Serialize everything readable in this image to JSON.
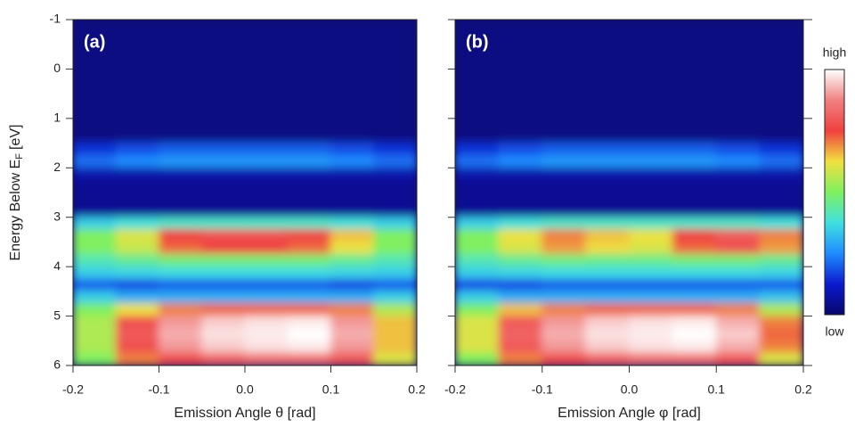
{
  "chart_data": [
    {
      "type": "heatmap",
      "title": "(a)",
      "x_label": "Emission Angle θ [rad]",
      "y_label": {
        "main": "Energy Below E",
        "sub": "F",
        "unit": "[eV]"
      },
      "xlim": [
        -0.2,
        0.2
      ],
      "xticks": [
        -0.2,
        -0.1,
        {
          "value": 0,
          "label": "0.0"
        },
        0.1,
        0.2
      ],
      "ylim": [
        6,
        -1
      ],
      "yticks": [
        -1,
        0,
        1,
        2,
        3,
        4,
        5,
        6
      ],
      "xbins": [
        -0.2,
        -0.15,
        -0.1,
        -0.05,
        0,
        0.05,
        0.1,
        0.15,
        0.2
      ],
      "ybins": [
        -1,
        -0.75,
        -0.5,
        -0.25,
        0,
        0.25,
        0.5,
        0.75,
        1,
        1.25,
        1.5,
        1.75,
        2,
        2.25,
        2.5,
        2.75,
        3,
        3.25,
        3.5,
        3.75,
        4,
        4.25,
        4.5,
        4.75,
        5,
        5.25,
        5.5,
        5.75,
        6
      ],
      "colormap": [
        "#06066a",
        "#0c1ad0",
        "#1e8cff",
        "#40e0e0",
        "#80f060",
        "#f0e040",
        "#f04040",
        "#f08080",
        "#ffffff"
      ],
      "z": [
        [
          0.03,
          0.03,
          0.03,
          0.03,
          0.03,
          0.03,
          0.03,
          0.03
        ],
        [
          0.03,
          0.03,
          0.03,
          0.03,
          0.03,
          0.03,
          0.03,
          0.03
        ],
        [
          0.03,
          0.03,
          0.03,
          0.03,
          0.03,
          0.03,
          0.03,
          0.03
        ],
        [
          0.03,
          0.03,
          0.03,
          0.03,
          0.03,
          0.03,
          0.03,
          0.03
        ],
        [
          0.03,
          0.03,
          0.03,
          0.03,
          0.03,
          0.03,
          0.03,
          0.03
        ],
        [
          0.03,
          0.03,
          0.03,
          0.03,
          0.03,
          0.03,
          0.03,
          0.03
        ],
        [
          0.03,
          0.03,
          0.03,
          0.03,
          0.03,
          0.03,
          0.03,
          0.03
        ],
        [
          0.03,
          0.03,
          0.03,
          0.03,
          0.03,
          0.03,
          0.03,
          0.03
        ],
        [
          0.03,
          0.03,
          0.03,
          0.03,
          0.03,
          0.03,
          0.03,
          0.03
        ],
        [
          0.03,
          0.03,
          0.03,
          0.03,
          0.03,
          0.03,
          0.03,
          0.03
        ],
        [
          0.15,
          0.18,
          0.2,
          0.2,
          0.2,
          0.2,
          0.18,
          0.15
        ],
        [
          0.22,
          0.25,
          0.27,
          0.27,
          0.27,
          0.27,
          0.25,
          0.22
        ],
        [
          0.08,
          0.08,
          0.08,
          0.08,
          0.08,
          0.08,
          0.08,
          0.08
        ],
        [
          0.05,
          0.05,
          0.05,
          0.05,
          0.05,
          0.05,
          0.05,
          0.05
        ],
        [
          0.05,
          0.05,
          0.05,
          0.05,
          0.05,
          0.05,
          0.05,
          0.05
        ],
        [
          0.05,
          0.05,
          0.05,
          0.05,
          0.05,
          0.05,
          0.05,
          0.05
        ],
        [
          0.35,
          0.38,
          0.4,
          0.4,
          0.4,
          0.4,
          0.38,
          0.35
        ],
        [
          0.5,
          0.6,
          0.75,
          0.78,
          0.78,
          0.76,
          0.65,
          0.5
        ],
        [
          0.5,
          0.58,
          0.72,
          0.75,
          0.75,
          0.72,
          0.62,
          0.5
        ],
        [
          0.42,
          0.45,
          0.48,
          0.48,
          0.48,
          0.48,
          0.45,
          0.42
        ],
        [
          0.35,
          0.36,
          0.37,
          0.37,
          0.37,
          0.37,
          0.36,
          0.35
        ],
        [
          0.2,
          0.18,
          0.2,
          0.2,
          0.2,
          0.2,
          0.18,
          0.2
        ],
        [
          0.35,
          0.3,
          0.3,
          0.3,
          0.3,
          0.3,
          0.3,
          0.35
        ],
        [
          0.5,
          0.62,
          0.7,
          0.72,
          0.72,
          0.72,
          0.7,
          0.55
        ],
        [
          0.55,
          0.78,
          0.9,
          0.95,
          0.97,
          0.98,
          0.9,
          0.65
        ],
        [
          0.55,
          0.8,
          0.92,
          0.97,
          0.98,
          1.0,
          0.92,
          0.65
        ],
        [
          0.55,
          0.78,
          0.9,
          0.95,
          0.97,
          0.98,
          0.9,
          0.65
        ],
        [
          0.5,
          0.7,
          0.78,
          0.82,
          0.85,
          0.85,
          0.8,
          0.6
        ]
      ]
    },
    {
      "type": "heatmap",
      "title": "(b)",
      "x_label": "Emission Angle φ [rad]",
      "xlim": [
        -0.2,
        0.2
      ],
      "xticks": [
        -0.2,
        -0.1,
        {
          "value": 0,
          "label": "0.0"
        },
        0.1,
        0.2
      ],
      "ylim": [
        6,
        -1
      ],
      "yticks": [
        -1,
        0,
        1,
        2,
        3,
        4,
        5,
        6
      ],
      "xbins": [
        -0.2,
        -0.15,
        -0.1,
        -0.05,
        0,
        0.05,
        0.1,
        0.15,
        0.2
      ],
      "ybins": [
        -1,
        -0.75,
        -0.5,
        -0.25,
        0,
        0.25,
        0.5,
        0.75,
        1,
        1.25,
        1.5,
        1.75,
        2,
        2.25,
        2.5,
        2.75,
        3,
        3.25,
        3.5,
        3.75,
        4,
        4.25,
        4.5,
        4.75,
        5,
        5.25,
        5.5,
        5.75,
        6
      ],
      "colormap": [
        "#06066a",
        "#0c1ad0",
        "#1e8cff",
        "#40e0e0",
        "#80f060",
        "#f0e040",
        "#f04040",
        "#f08080",
        "#ffffff"
      ],
      "colorbar": {
        "high": "high",
        "low": "low"
      },
      "z": [
        [
          0.03,
          0.03,
          0.03,
          0.03,
          0.03,
          0.03,
          0.03,
          0.03
        ],
        [
          0.03,
          0.03,
          0.03,
          0.03,
          0.03,
          0.03,
          0.03,
          0.03
        ],
        [
          0.03,
          0.03,
          0.03,
          0.03,
          0.03,
          0.03,
          0.03,
          0.03
        ],
        [
          0.03,
          0.03,
          0.03,
          0.03,
          0.03,
          0.03,
          0.03,
          0.03
        ],
        [
          0.03,
          0.03,
          0.03,
          0.03,
          0.03,
          0.03,
          0.03,
          0.03
        ],
        [
          0.03,
          0.03,
          0.03,
          0.03,
          0.03,
          0.03,
          0.03,
          0.03
        ],
        [
          0.03,
          0.03,
          0.03,
          0.03,
          0.03,
          0.03,
          0.03,
          0.03
        ],
        [
          0.03,
          0.03,
          0.03,
          0.03,
          0.03,
          0.03,
          0.03,
          0.03
        ],
        [
          0.03,
          0.03,
          0.03,
          0.03,
          0.03,
          0.03,
          0.03,
          0.03
        ],
        [
          0.03,
          0.03,
          0.03,
          0.03,
          0.03,
          0.03,
          0.03,
          0.03
        ],
        [
          0.15,
          0.18,
          0.2,
          0.2,
          0.2,
          0.2,
          0.18,
          0.15
        ],
        [
          0.22,
          0.25,
          0.27,
          0.27,
          0.27,
          0.27,
          0.25,
          0.22
        ],
        [
          0.08,
          0.08,
          0.08,
          0.08,
          0.08,
          0.08,
          0.08,
          0.08
        ],
        [
          0.05,
          0.05,
          0.05,
          0.05,
          0.05,
          0.05,
          0.05,
          0.05
        ],
        [
          0.05,
          0.05,
          0.05,
          0.05,
          0.05,
          0.05,
          0.05,
          0.05
        ],
        [
          0.05,
          0.05,
          0.05,
          0.05,
          0.05,
          0.05,
          0.05,
          0.05
        ],
        [
          0.35,
          0.38,
          0.4,
          0.4,
          0.4,
          0.4,
          0.4,
          0.38
        ],
        [
          0.5,
          0.62,
          0.7,
          0.65,
          0.62,
          0.75,
          0.8,
          0.7
        ],
        [
          0.5,
          0.6,
          0.68,
          0.63,
          0.6,
          0.72,
          0.78,
          0.68
        ],
        [
          0.42,
          0.45,
          0.47,
          0.46,
          0.46,
          0.48,
          0.48,
          0.45
        ],
        [
          0.35,
          0.36,
          0.37,
          0.37,
          0.37,
          0.37,
          0.37,
          0.36
        ],
        [
          0.18,
          0.18,
          0.2,
          0.2,
          0.2,
          0.2,
          0.2,
          0.2
        ],
        [
          0.35,
          0.3,
          0.3,
          0.3,
          0.3,
          0.3,
          0.3,
          0.33
        ],
        [
          0.5,
          0.65,
          0.7,
          0.72,
          0.72,
          0.72,
          0.7,
          0.55
        ],
        [
          0.6,
          0.8,
          0.9,
          0.95,
          0.97,
          0.98,
          0.92,
          0.7
        ],
        [
          0.6,
          0.82,
          0.92,
          0.97,
          0.98,
          1.0,
          0.95,
          0.72
        ],
        [
          0.6,
          0.8,
          0.9,
          0.95,
          0.97,
          0.98,
          0.92,
          0.7
        ],
        [
          0.5,
          0.7,
          0.78,
          0.82,
          0.85,
          0.85,
          0.8,
          0.6
        ]
      ]
    }
  ]
}
